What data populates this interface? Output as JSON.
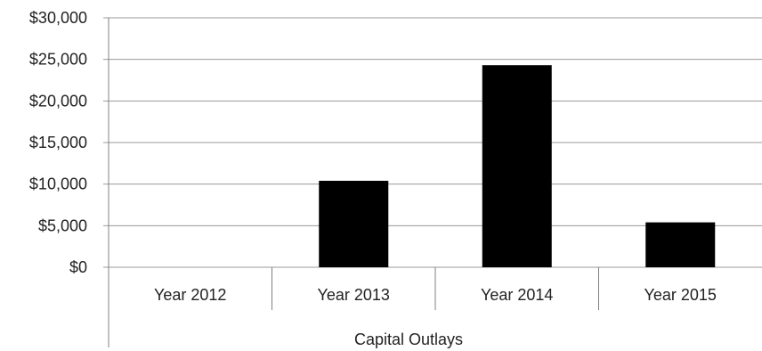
{
  "chart_data": {
    "type": "bar",
    "categories": [
      "Year 2012",
      "Year 2013",
      "Year 2014",
      "Year 2015"
    ],
    "group_label": "Capital Outlays",
    "values": [
      0,
      10400,
      24300,
      5400
    ],
    "ylim": [
      0,
      30000
    ],
    "yticks": [
      0,
      5000,
      10000,
      15000,
      20000,
      25000,
      30000
    ],
    "ytick_labels": [
      "$0",
      "$5,000",
      "$10,000",
      "$15,000",
      "$20,000",
      "$25,000",
      "$30,000"
    ],
    "grid": true,
    "bar_color": "#000000",
    "title": "",
    "xlabel": "",
    "ylabel": ""
  }
}
